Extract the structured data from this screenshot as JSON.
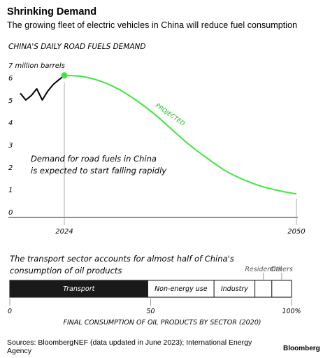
{
  "header": {
    "title": "Shrinking Demand",
    "subtitle": "The growing fleet of electric vehicles in China will reduce fuel consumption"
  },
  "footer": {
    "sources": "Sources: BloombergNEF (data updated in June 2023); International Energy Agency",
    "brand": "Bloomberg"
  },
  "colors": {
    "projected": "#3ee63e",
    "historical": "#000000",
    "bar_dark": "#1a1a1a"
  },
  "chart_data": [
    {
      "type": "line",
      "title": "CHINA'S DAILY ROAD FUELS DEMAND",
      "unit_label": "7 million barrels",
      "y_ticks": [
        "0",
        "1",
        "2",
        "3",
        "4",
        "5",
        "6"
      ],
      "ylim": [
        0,
        7
      ],
      "x_ticks": [
        "2024",
        "2050"
      ],
      "annotation": "Demand for road fuels in China is expected to start falling rapidly",
      "projected_label": "PROJECTED",
      "series": [
        {
          "style": "historical",
          "x": [
            2016,
            2017,
            2018,
            2019,
            2020,
            2021,
            2022,
            2023,
            2024
          ],
          "y": [
            5.3,
            5.0,
            5.2,
            5.5,
            5.0,
            5.4,
            5.7,
            5.9,
            6.1
          ]
        },
        {
          "style": "projected",
          "x": [
            2024,
            2026,
            2028,
            2030,
            2032,
            2034,
            2036,
            2038,
            2040,
            2042,
            2044,
            2046,
            2048,
            2050
          ],
          "y": [
            6.1,
            6.05,
            5.85,
            5.5,
            5.0,
            4.4,
            3.7,
            3.0,
            2.4,
            1.85,
            1.45,
            1.15,
            0.95,
            0.8
          ]
        }
      ]
    },
    {
      "type": "bar",
      "title": "The transport sector accounts for almost half of China's consumption of oil products",
      "xlabel": "FINAL CONSUMPTION OF OIL PRODUCTS BY SECTOR (2020)",
      "x_ticks": [
        "0",
        "50",
        "100%"
      ],
      "categories": [
        "Transport",
        "Non-energy use",
        "Industry",
        "Residential",
        "Others"
      ],
      "values": [
        49,
        23.5,
        14.5,
        6,
        7
      ]
    }
  ]
}
